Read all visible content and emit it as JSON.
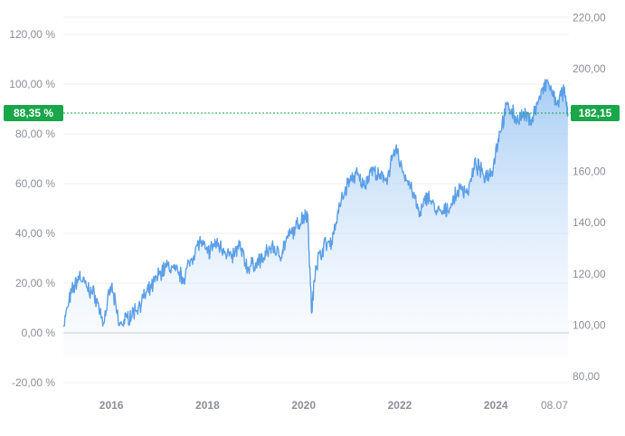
{
  "chart_data": {
    "type": "area",
    "left_axis": {
      "unit": "%",
      "ticks": [
        "120,00 %",
        "100,00 %",
        "80,00 %",
        "60,00 %",
        "40,00 %",
        "20,00 %",
        "0,00 %",
        "-20,00 %"
      ],
      "tick_values": [
        120,
        100,
        80,
        60,
        40,
        20,
        0,
        -20
      ],
      "range": [
        -20,
        120
      ]
    },
    "right_axis": {
      "ticks": [
        "220,00",
        "200,00",
        "160,00",
        "140,00",
        "120,00",
        "100,00",
        "80,00"
      ],
      "tick_values": [
        220,
        200,
        160,
        140,
        120,
        100,
        80
      ],
      "range": [
        80,
        220
      ]
    },
    "x_axis": {
      "ticks": [
        "2016",
        "2018",
        "2020",
        "2022",
        "2024",
        "08.07"
      ],
      "range": [
        "2015-01",
        "2025-07-08"
      ]
    },
    "current": {
      "percent_label": "88,35 %",
      "price_label": "182,15",
      "percent_value": 88.35,
      "price_value": 182.15
    },
    "series": [
      {
        "x": [
          "2015-01",
          "2015-03",
          "2015-05",
          "2015-07",
          "2015-09",
          "2015-11",
          "2016-01",
          "2016-03",
          "2016-05",
          "2016-07",
          "2016-09",
          "2016-11",
          "2017-01",
          "2017-03",
          "2017-05",
          "2017-07",
          "2017-09",
          "2017-11",
          "2018-01",
          "2018-03",
          "2018-05",
          "2018-07",
          "2018-09",
          "2018-11",
          "2019-01",
          "2019-03",
          "2019-05",
          "2019-07",
          "2019-09",
          "2019-11",
          "2020-01",
          "2020-02",
          "2020-03",
          "2020-04",
          "2020-06",
          "2020-08",
          "2020-10",
          "2020-12",
          "2021-02",
          "2021-04",
          "2021-06",
          "2021-08",
          "2021-10",
          "2021-12",
          "2022-02",
          "2022-04",
          "2022-06",
          "2022-08",
          "2022-10",
          "2022-12",
          "2023-02",
          "2023-04",
          "2023-06",
          "2023-08",
          "2023-10",
          "2023-12",
          "2024-02",
          "2024-04",
          "2024-06",
          "2024-08",
          "2024-10",
          "2024-12",
          "2025-02",
          "2025-04",
          "2025-06",
          "2025-07"
        ],
        "y": [
          3,
          16,
          23,
          18,
          15,
          4,
          19,
          3,
          6,
          9,
          14,
          18,
          24,
          27,
          25,
          22,
          30,
          37,
          32,
          36,
          34,
          30,
          35,
          26,
          28,
          30,
          35,
          31,
          38,
          42,
          47,
          48,
          8,
          27,
          35,
          37,
          51,
          60,
          64,
          59,
          66,
          62,
          63,
          74,
          64,
          58,
          47,
          56,
          49,
          48,
          52,
          58,
          57,
          68,
          63,
          65,
          81,
          92,
          86,
          87,
          86,
          95,
          101,
          92,
          97,
          88
        ]
      }
    ],
    "colors": {
      "line": "#5b9fe6",
      "fill_top": "#9cc7f4",
      "badge": "#1aa64a",
      "grid": "#eceef1",
      "zero_line": "#c4c8ce"
    }
  }
}
